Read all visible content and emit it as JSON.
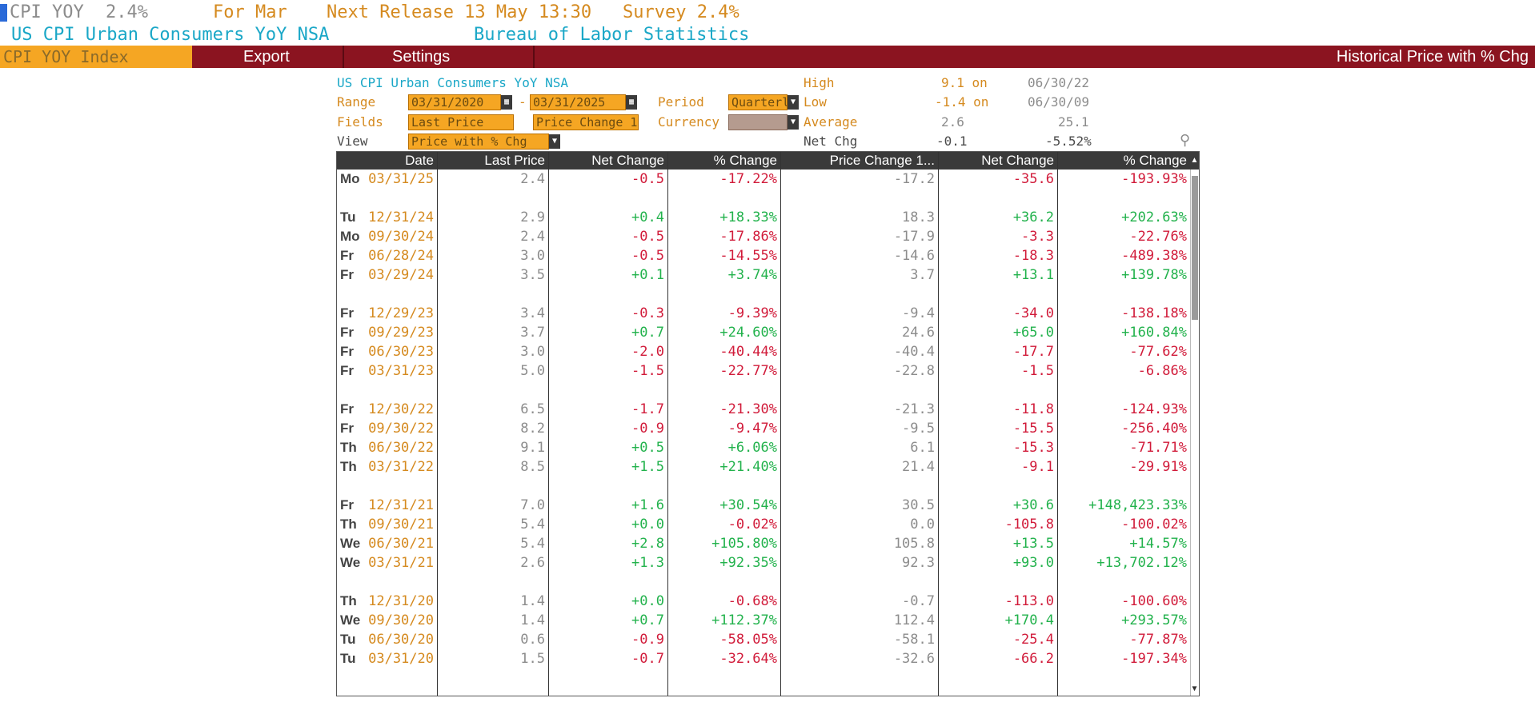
{
  "ticker": {
    "symbol": "CPI YOY",
    "value": "2.4%",
    "for_label": "For Mar",
    "next_release": "Next Release 13 May 13:30",
    "survey": "Survey 2.4%",
    "name": "US CPI Urban Consumers YoY NSA",
    "source": "Bureau of Labor Statistics"
  },
  "menu": {
    "security": "CPI YOY Index",
    "export": "Export",
    "settings": "Settings",
    "page_title": "Historical Price with % Chg"
  },
  "controls": {
    "title": "US CPI Urban Consumers YoY NSA",
    "range_label": "Range",
    "range_start": "03/31/2020",
    "range_dash": "-",
    "range_end": "03/31/2025",
    "period_label": "Period",
    "period_value": "Quarterly",
    "fields_label": "Fields",
    "field1": "Last Price",
    "field2": "Price Change 1",
    "currency_label": "Currency",
    "view_label": "View",
    "view_value": "Price with % Chg"
  },
  "stats": {
    "high_label": "High",
    "high_value": "9.1 on",
    "high_date": "06/30/22",
    "low_label": "Low",
    "low_value": "-1.4 on",
    "low_date": "06/30/09",
    "avg_label": "Average",
    "avg_value": "2.6",
    "avg_value2": "25.1",
    "net_label": "Net Chg",
    "net_value": "-0.1",
    "net_value2": "-5.52%"
  },
  "table": {
    "columns": [
      "Date",
      "Last Price",
      "Net Change",
      "% Change",
      "Price Change 1...",
      "Net Change",
      "% Change"
    ],
    "rows": [
      {
        "day": "Mo",
        "date": "03/31/25",
        "last": "2.4",
        "net": "-0.5",
        "pct": "-17.22%",
        "pc1": "-17.2",
        "net2": "-35.6",
        "pct2": "-193.93%"
      },
      {
        "day": "Tu",
        "date": "12/31/24",
        "last": "2.9",
        "net": "+0.4",
        "pct": "+18.33%",
        "pc1": "18.3",
        "net2": "+36.2",
        "pct2": "+202.63%"
      },
      {
        "day": "Mo",
        "date": "09/30/24",
        "last": "2.4",
        "net": "-0.5",
        "pct": "-17.86%",
        "pc1": "-17.9",
        "net2": "-3.3",
        "pct2": "-22.76%"
      },
      {
        "day": "Fr",
        "date": "06/28/24",
        "last": "3.0",
        "net": "-0.5",
        "pct": "-14.55%",
        "pc1": "-14.6",
        "net2": "-18.3",
        "pct2": "-489.38%"
      },
      {
        "day": "Fr",
        "date": "03/29/24",
        "last": "3.5",
        "net": "+0.1",
        "pct": "+3.74%",
        "pc1": "3.7",
        "net2": "+13.1",
        "pct2": "+139.78%"
      },
      {
        "day": "Fr",
        "date": "12/29/23",
        "last": "3.4",
        "net": "-0.3",
        "pct": "-9.39%",
        "pc1": "-9.4",
        "net2": "-34.0",
        "pct2": "-138.18%"
      },
      {
        "day": "Fr",
        "date": "09/29/23",
        "last": "3.7",
        "net": "+0.7",
        "pct": "+24.60%",
        "pc1": "24.6",
        "net2": "+65.0",
        "pct2": "+160.84%"
      },
      {
        "day": "Fr",
        "date": "06/30/23",
        "last": "3.0",
        "net": "-2.0",
        "pct": "-40.44%",
        "pc1": "-40.4",
        "net2": "-17.7",
        "pct2": "-77.62%"
      },
      {
        "day": "Fr",
        "date": "03/31/23",
        "last": "5.0",
        "net": "-1.5",
        "pct": "-22.77%",
        "pc1": "-22.8",
        "net2": "-1.5",
        "pct2": "-6.86%"
      },
      {
        "day": "Fr",
        "date": "12/30/22",
        "last": "6.5",
        "net": "-1.7",
        "pct": "-21.30%",
        "pc1": "-21.3",
        "net2": "-11.8",
        "pct2": "-124.93%"
      },
      {
        "day": "Fr",
        "date": "09/30/22",
        "last": "8.2",
        "net": "-0.9",
        "pct": "-9.47%",
        "pc1": "-9.5",
        "net2": "-15.5",
        "pct2": "-256.40%"
      },
      {
        "day": "Th",
        "date": "06/30/22",
        "last": "9.1",
        "net": "+0.5",
        "pct": "+6.06%",
        "pc1": "6.1",
        "net2": "-15.3",
        "pct2": "-71.71%"
      },
      {
        "day": "Th",
        "date": "03/31/22",
        "last": "8.5",
        "net": "+1.5",
        "pct": "+21.40%",
        "pc1": "21.4",
        "net2": "-9.1",
        "pct2": "-29.91%"
      },
      {
        "day": "Fr",
        "date": "12/31/21",
        "last": "7.0",
        "net": "+1.6",
        "pct": "+30.54%",
        "pc1": "30.5",
        "net2": "+30.6",
        "pct2": "+148,423.33%"
      },
      {
        "day": "Th",
        "date": "09/30/21",
        "last": "5.4",
        "net": "+0.0",
        "pct": "-0.02%",
        "pc1": "0.0",
        "net2": "-105.8",
        "pct2": "-100.02%"
      },
      {
        "day": "We",
        "date": "06/30/21",
        "last": "5.4",
        "net": "+2.8",
        "pct": "+105.80%",
        "pc1": "105.8",
        "net2": "+13.5",
        "pct2": "+14.57%"
      },
      {
        "day": "We",
        "date": "03/31/21",
        "last": "2.6",
        "net": "+1.3",
        "pct": "+92.35%",
        "pc1": "92.3",
        "net2": "+93.0",
        "pct2": "+13,702.12%"
      },
      {
        "day": "Th",
        "date": "12/31/20",
        "last": "1.4",
        "net": "+0.0",
        "pct": "-0.68%",
        "pc1": "-0.7",
        "net2": "-113.0",
        "pct2": "-100.60%"
      },
      {
        "day": "We",
        "date": "09/30/20",
        "last": "1.4",
        "net": "+0.7",
        "pct": "+112.37%",
        "pc1": "112.4",
        "net2": "+170.4",
        "pct2": "+293.57%"
      },
      {
        "day": "Tu",
        "date": "06/30/20",
        "last": "0.6",
        "net": "-0.9",
        "pct": "-58.05%",
        "pc1": "-58.1",
        "net2": "-25.4",
        "pct2": "-77.87%"
      },
      {
        "day": "Tu",
        "date": "03/31/20",
        "last": "1.5",
        "net": "-0.7",
        "pct": "-32.64%",
        "pc1": "-32.6",
        "net2": "-66.2",
        "pct2": "-197.34%"
      }
    ]
  },
  "colors": {
    "accent_orange": "#f5a623",
    "menu_bar": "#8b1420",
    "positive": "#22b24c",
    "negative": "#d11b3a"
  }
}
